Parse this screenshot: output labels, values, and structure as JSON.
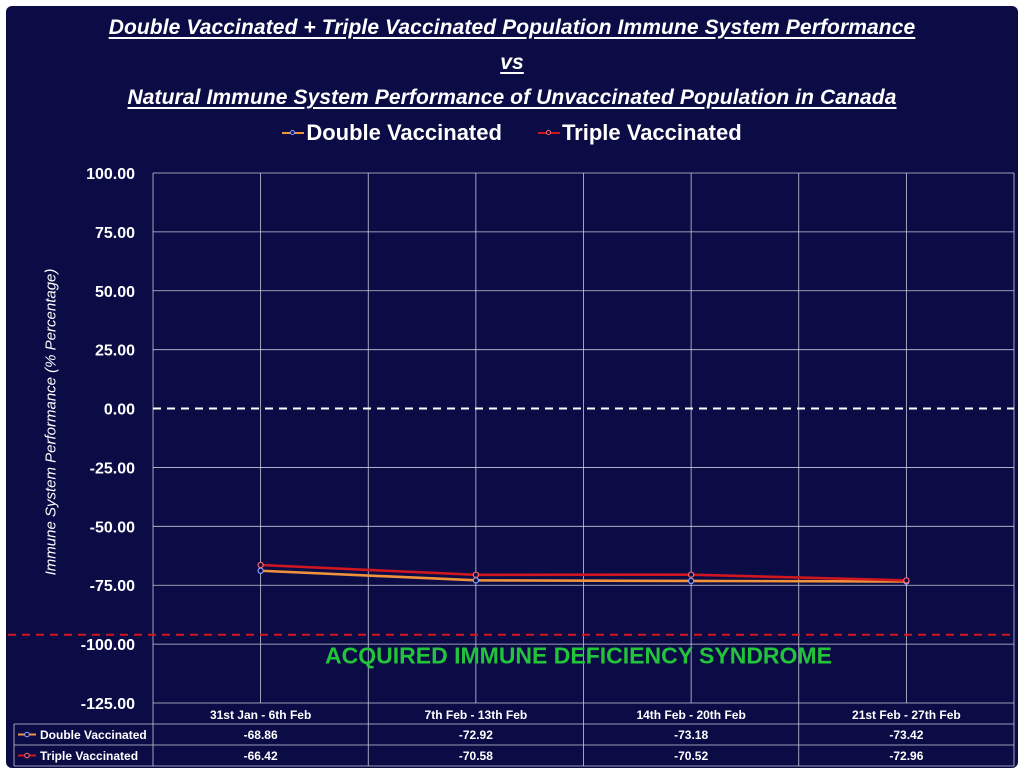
{
  "title_lines": [
    "Double Vaccinated + Triple Vaccinated Population Immune System Performance",
    "vs",
    "Natural Immune System Performance of Unvaccinated Population in Canada"
  ],
  "annotation": "ACQUIRED IMMUNE DEFICIENCY SYNDROME",
  "colors": {
    "background": "#0b0c46",
    "grid": "#c8c8d8",
    "double": "#f0923c",
    "triple": "#d0161f",
    "annotation": "#22c43a",
    "reference_zero": "#ffffff",
    "reference_aids": "#d0161f"
  },
  "chart_data": {
    "type": "line",
    "title": "Double Vaccinated + Triple Vaccinated Population Immune System Performance vs Natural Immune System Performance of Unvaccinated Population in Canada",
    "xlabel": "",
    "ylabel": "Immune System Performance (% Percentage)",
    "categories": [
      "31st Jan - 6th Feb",
      "7th Feb - 13th Feb",
      "14th Feb - 20th Feb",
      "21st Feb - 27th Feb"
    ],
    "series": [
      {
        "name": "Double Vaccinated",
        "values": [
          -68.86,
          -72.92,
          -73.18,
          -73.42
        ],
        "labels": [
          "-68.86",
          "-72.92",
          "-73.18",
          "-73.42"
        ],
        "color": "#f0923c"
      },
      {
        "name": "Triple Vaccinated",
        "values": [
          -66.42,
          -70.58,
          -70.52,
          -72.96
        ],
        "labels": [
          "-66.42",
          "-70.58",
          "-70.52",
          "-72.96"
        ],
        "color": "#d0161f"
      }
    ],
    "ylim": [
      -125,
      100
    ],
    "yticks": [
      100,
      75,
      50,
      25,
      0,
      -25,
      -50,
      -75,
      -100,
      -125
    ],
    "ytick_labels": [
      "100.00",
      "75.00",
      "50.00",
      "25.00",
      "0.00",
      "-25.00",
      "-50.00",
      "-75.00",
      "-100.00",
      "-125.00"
    ],
    "reference_lines": [
      {
        "value": 0,
        "style": "dashed",
        "color": "#ffffff"
      },
      {
        "value": -96,
        "style": "dashed",
        "color": "#d0161f"
      }
    ],
    "grid": true,
    "legend": "top-center",
    "data_table": true
  }
}
